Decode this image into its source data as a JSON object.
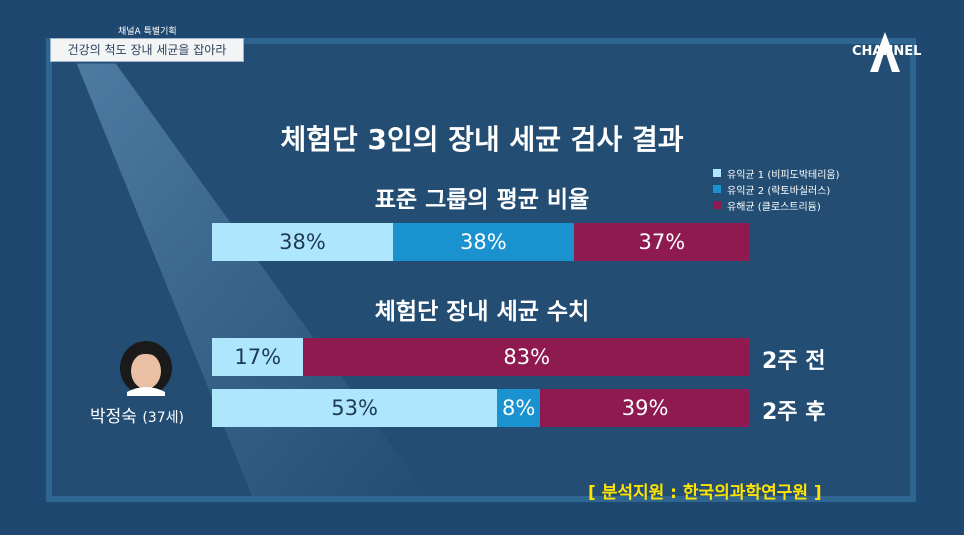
{
  "header": {
    "program_label": "채널A 특별기획",
    "episode_title": "건강의 척도 장내 세균을 잡아라"
  },
  "logo": {
    "text": "CHANNEL"
  },
  "main_title": "체험단 3인의 장내 세균 검사 결과",
  "section1_title": "표준 그룹의 평균 비율",
  "section2_title": "체험단 장내 세균 수치",
  "person": {
    "name": "박정숙",
    "age": "(37세)"
  },
  "source": "[ 분석지원 : 한국의과학연구원 ]",
  "colors": {
    "beneficial1": "#aee6fb",
    "beneficial2": "#1992cf",
    "harmful": "#8e1a50",
    "background": "#234d73"
  },
  "chart_data": {
    "type": "bar",
    "stacked": true,
    "orientation": "horizontal",
    "legend_position": "top-right",
    "series": [
      {
        "name": "유익균 1 (비피도박테리움)",
        "color": "#aee6fb"
      },
      {
        "name": "유익균 2 (락토바실러스)",
        "color": "#1992cf"
      },
      {
        "name": "유해균 (클로스트리듐)",
        "color": "#8e1a50"
      }
    ],
    "bars": [
      {
        "label": "",
        "values": [
          38,
          38,
          37
        ],
        "value_labels": [
          "38%",
          "38%",
          "37%"
        ]
      },
      {
        "label": "2주 전",
        "values": [
          17,
          0,
          83
        ],
        "value_labels": [
          "17%",
          "",
          "83%"
        ]
      },
      {
        "label": "2주 후",
        "values": [
          53,
          8,
          39
        ],
        "value_labels": [
          "53%",
          "8%",
          "39%"
        ]
      }
    ]
  }
}
